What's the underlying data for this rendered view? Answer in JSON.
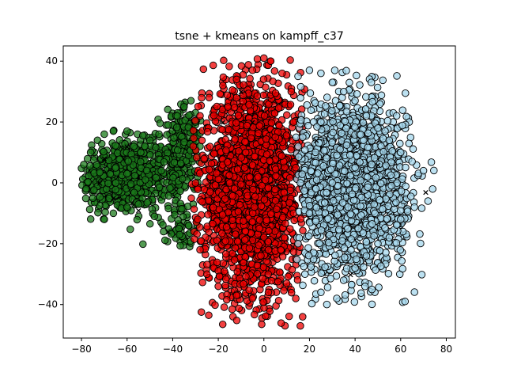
{
  "chart_data": {
    "type": "scatter",
    "title": "tsne + kmeans on kampff_c37",
    "xlabel": "",
    "ylabel": "",
    "xlim": [
      -88,
      84
    ],
    "ylim": [
      -51,
      45
    ],
    "xticks": [
      -80,
      -60,
      -40,
      -20,
      0,
      20,
      40,
      60,
      80
    ],
    "yticks": [
      -40,
      -20,
      0,
      20,
      40
    ],
    "xtick_labels": [
      "−80",
      "−60",
      "−40",
      "−20",
      "0",
      "20",
      "40",
      "60",
      "80"
    ],
    "ytick_labels": [
      "−40",
      "−20",
      "0",
      "20",
      "40"
    ],
    "grid": false,
    "legend": "none",
    "series": [
      {
        "color": "#1b7a1b",
        "marker": "circle",
        "approx_count": 900,
        "clusters": [
          {
            "cx": -65,
            "cy": 2,
            "sx": 7,
            "sy": 6,
            "n": 420
          },
          {
            "cx": -50,
            "cy": 3,
            "sx": 6,
            "sy": 6,
            "n": 220
          },
          {
            "cx": -38,
            "cy": 6,
            "sx": 4,
            "sy": 9,
            "n": 160
          },
          {
            "cx": -33,
            "cy": 17,
            "sx": 3,
            "sy": 5,
            "n": 60
          },
          {
            "cx": -36,
            "cy": -15,
            "sx": 3,
            "sy": 4,
            "n": 40
          }
        ],
        "x_range": [
          -80,
          -27
        ],
        "y_range": [
          -22,
          27
        ],
        "sample_points": [
          [
            -79,
            6
          ],
          [
            -76,
            10
          ],
          [
            -73,
            14
          ],
          [
            -70,
            16
          ],
          [
            -66,
            17
          ],
          [
            -60,
            17
          ],
          [
            -57,
            12
          ],
          [
            -54,
            10
          ],
          [
            -50,
            14
          ],
          [
            -46,
            16
          ],
          [
            -42,
            19
          ],
          [
            -38,
            22
          ],
          [
            -35,
            25
          ],
          [
            -32,
            27
          ],
          [
            -30,
            20
          ],
          [
            -28,
            12
          ],
          [
            -29,
            2
          ],
          [
            -31,
            -7
          ],
          [
            -33,
            -14
          ],
          [
            -37,
            -17
          ],
          [
            -44,
            -16
          ],
          [
            -48,
            -11
          ],
          [
            -55,
            -7
          ],
          [
            -60,
            -8
          ],
          [
            -66,
            -10
          ],
          [
            -70,
            -12
          ],
          [
            -75,
            -5
          ],
          [
            -78,
            -2
          ],
          [
            -65,
            0
          ],
          [
            -60,
            3
          ],
          [
            -52,
            1
          ],
          [
            -45,
            4
          ]
        ]
      },
      {
        "color": "#ee0000",
        "marker": "circle",
        "approx_count": 2200,
        "clusters": [
          {
            "cx": -5,
            "cy": -2,
            "sx": 11,
            "sy": 17,
            "n": 2200
          }
        ],
        "x_range": [
          -32,
          18
        ],
        "y_range": [
          -47,
          41
        ],
        "sample_points": [
          [
            0,
            41
          ],
          [
            3,
            40
          ],
          [
            -5,
            37
          ],
          [
            -12,
            34
          ],
          [
            -18,
            32
          ],
          [
            -24,
            28
          ],
          [
            -28,
            22
          ],
          [
            -31,
            12
          ],
          [
            -30,
            0
          ],
          [
            -29,
            -12
          ],
          [
            -28,
            -22
          ],
          [
            -25,
            -30
          ],
          [
            -20,
            -34
          ],
          [
            -12,
            -37
          ],
          [
            -5,
            -38
          ],
          [
            2,
            -36
          ],
          [
            10,
            -33
          ],
          [
            14,
            -38
          ],
          [
            17,
            -44
          ],
          [
            16,
            -47
          ],
          [
            14,
            -25
          ],
          [
            13,
            -10
          ],
          [
            14,
            5
          ],
          [
            13,
            20
          ],
          [
            12,
            30
          ],
          [
            8,
            36
          ],
          [
            -8,
            10
          ],
          [
            -2,
            -15
          ],
          [
            -15,
            0
          ],
          [
            5,
            15
          ]
        ]
      },
      {
        "color": "#a6d7ec",
        "marker": "circle",
        "approx_count": 2000,
        "clusters": [
          {
            "cx": 38,
            "cy": -1,
            "sx": 12,
            "sy": 14,
            "n": 2000
          }
        ],
        "x_range": [
          14,
          76
        ],
        "y_range": [
          -40,
          37
        ],
        "sample_points": [
          [
            15,
            35
          ],
          [
            20,
            37
          ],
          [
            25,
            36
          ],
          [
            30,
            33
          ],
          [
            35,
            30
          ],
          [
            40,
            27
          ],
          [
            45,
            22
          ],
          [
            50,
            18
          ],
          [
            55,
            14
          ],
          [
            60,
            10
          ],
          [
            65,
            7
          ],
          [
            70,
            4
          ],
          [
            74,
            -2
          ],
          [
            72,
            -6
          ],
          [
            66,
            -8
          ],
          [
            60,
            -12
          ],
          [
            55,
            -18
          ],
          [
            50,
            -20
          ],
          [
            45,
            -24
          ],
          [
            40,
            -28
          ],
          [
            35,
            -32
          ],
          [
            32,
            -38
          ],
          [
            25,
            -36
          ],
          [
            18,
            -30
          ],
          [
            15,
            -20
          ],
          [
            16,
            0
          ],
          [
            17,
            15
          ],
          [
            30,
            0
          ],
          [
            40,
            5
          ],
          [
            25,
            20
          ],
          [
            20,
            -10
          ]
        ]
      }
    ],
    "x_markers": [
      {
        "x": -72,
        "y": 0
      },
      {
        "x": -70,
        "y": 8
      },
      {
        "x": -66,
        "y": -5
      },
      {
        "x": -60,
        "y": 12
      },
      {
        "x": -55,
        "y": -9
      },
      {
        "x": -42,
        "y": -16
      },
      {
        "x": -18,
        "y": 20
      },
      {
        "x": -10,
        "y": 30
      },
      {
        "x": -5,
        "y": 20
      },
      {
        "x": 23,
        "y": 14
      },
      {
        "x": 38,
        "y": -30
      },
      {
        "x": 71,
        "y": -3
      },
      {
        "x": 40,
        "y": 12
      },
      {
        "x": 50,
        "y": 6
      }
    ]
  }
}
